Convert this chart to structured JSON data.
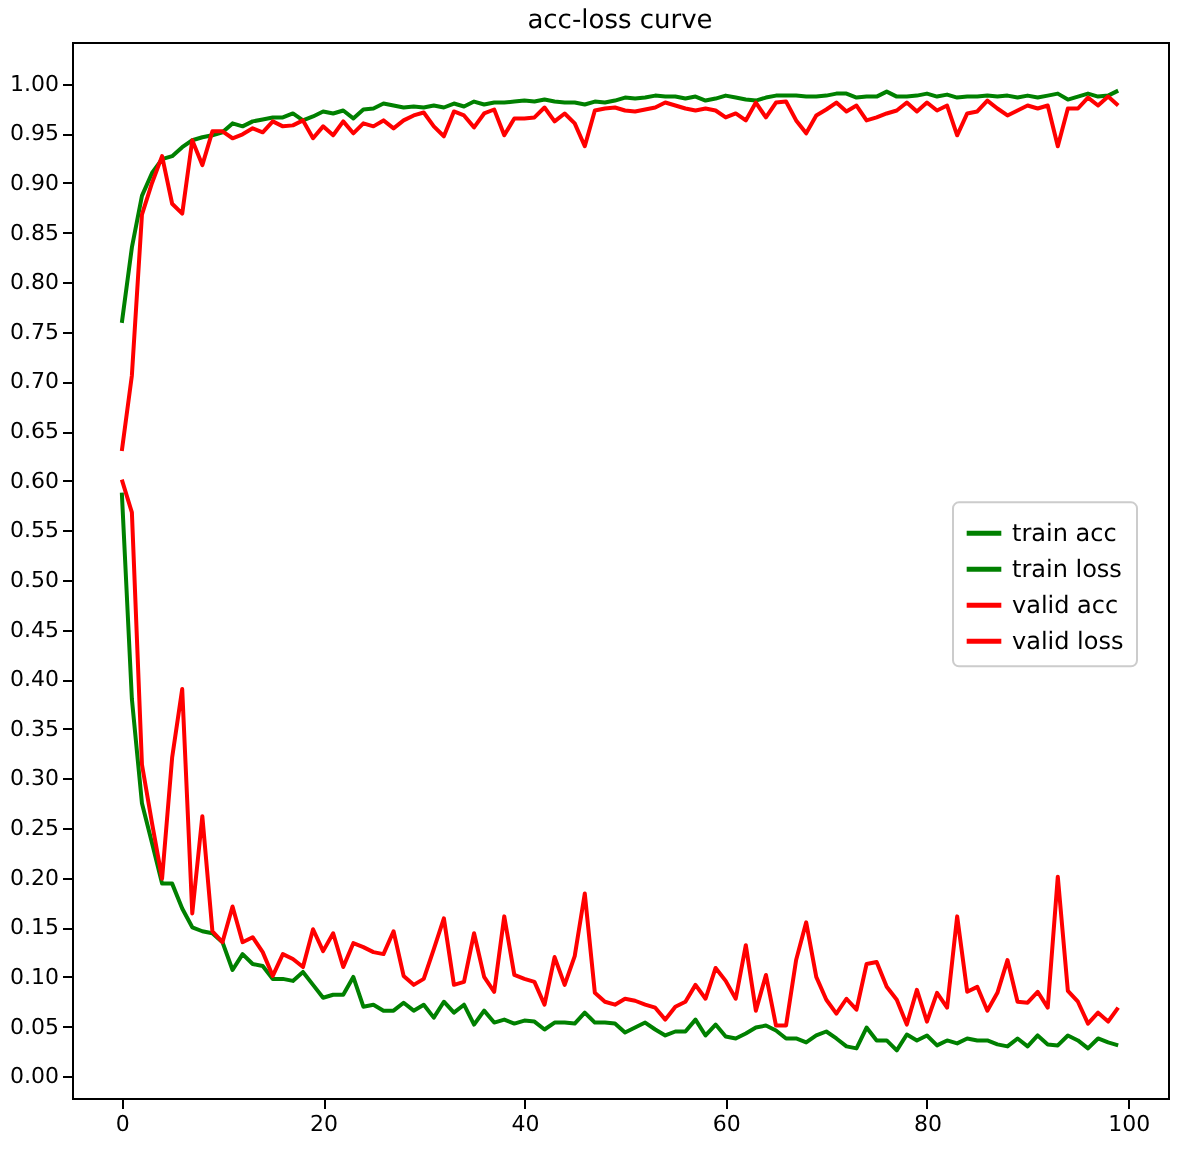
{
  "chart_data": {
    "type": "line",
    "title": "acc-loss curve",
    "x": [
      0,
      1,
      2,
      3,
      4,
      5,
      6,
      7,
      8,
      9,
      10,
      11,
      12,
      13,
      14,
      15,
      16,
      17,
      18,
      19,
      20,
      21,
      22,
      23,
      24,
      25,
      26,
      27,
      28,
      29,
      30,
      31,
      32,
      33,
      34,
      35,
      36,
      37,
      38,
      39,
      40,
      41,
      42,
      43,
      44,
      45,
      46,
      47,
      48,
      49,
      50,
      51,
      52,
      53,
      54,
      55,
      56,
      57,
      58,
      59,
      60,
      61,
      62,
      63,
      64,
      65,
      66,
      67,
      68,
      69,
      70,
      71,
      72,
      73,
      74,
      75,
      76,
      77,
      78,
      79,
      80,
      81,
      82,
      83,
      84,
      85,
      86,
      87,
      88,
      89,
      90,
      91,
      92,
      93,
      94,
      95,
      96,
      97,
      98,
      99
    ],
    "series": [
      {
        "name": "train acc",
        "color": "#008000",
        "values": [
          0.759,
          0.835,
          0.887,
          0.91,
          0.924,
          0.927,
          0.936,
          0.943,
          0.946,
          0.948,
          0.951,
          0.96,
          0.957,
          0.962,
          0.964,
          0.966,
          0.966,
          0.97,
          0.963,
          0.967,
          0.972,
          0.97,
          0.973,
          0.965,
          0.974,
          0.975,
          0.98,
          0.978,
          0.976,
          0.977,
          0.976,
          0.978,
          0.976,
          0.98,
          0.977,
          0.982,
          0.979,
          0.981,
          0.981,
          0.982,
          0.983,
          0.982,
          0.984,
          0.982,
          0.981,
          0.981,
          0.979,
          0.982,
          0.981,
          0.983,
          0.986,
          0.985,
          0.986,
          0.988,
          0.987,
          0.987,
          0.985,
          0.987,
          0.983,
          0.985,
          0.988,
          0.986,
          0.984,
          0.983,
          0.986,
          0.988,
          0.988,
          0.988,
          0.987,
          0.987,
          0.988,
          0.99,
          0.99,
          0.986,
          0.987,
          0.987,
          0.992,
          0.987,
          0.987,
          0.988,
          0.99,
          0.987,
          0.989,
          0.986,
          0.987,
          0.987,
          0.988,
          0.987,
          0.988,
          0.986,
          0.988,
          0.986,
          0.988,
          0.99,
          0.984,
          0.987,
          0.99,
          0.987,
          0.988,
          0.993
        ]
      },
      {
        "name": "train loss",
        "color": "#008000",
        "values": [
          0.588,
          0.38,
          0.275,
          0.235,
          0.194,
          0.194,
          0.169,
          0.15,
          0.146,
          0.144,
          0.135,
          0.107,
          0.123,
          0.113,
          0.111,
          0.098,
          0.098,
          0.096,
          0.105,
          0.092,
          0.079,
          0.082,
          0.082,
          0.1,
          0.07,
          0.072,
          0.066,
          0.066,
          0.074,
          0.066,
          0.072,
          0.059,
          0.075,
          0.064,
          0.072,
          0.052,
          0.066,
          0.054,
          0.057,
          0.053,
          0.056,
          0.055,
          0.047,
          0.054,
          0.054,
          0.053,
          0.064,
          0.054,
          0.054,
          0.053,
          0.044,
          0.049,
          0.054,
          0.047,
          0.041,
          0.045,
          0.045,
          0.057,
          0.041,
          0.052,
          0.04,
          0.038,
          0.043,
          0.049,
          0.051,
          0.046,
          0.038,
          0.038,
          0.034,
          0.041,
          0.045,
          0.038,
          0.03,
          0.028,
          0.049,
          0.036,
          0.036,
          0.026,
          0.042,
          0.036,
          0.041,
          0.031,
          0.036,
          0.033,
          0.038,
          0.036,
          0.036,
          0.032,
          0.03,
          0.038,
          0.03,
          0.041,
          0.032,
          0.031,
          0.041,
          0.036,
          0.028,
          0.038,
          0.034,
          0.031
        ]
      },
      {
        "name": "valid acc",
        "color": "#ff0000",
        "values": [
          0.63,
          0.706,
          0.868,
          0.9,
          0.927,
          0.879,
          0.869,
          0.943,
          0.918,
          0.952,
          0.952,
          0.945,
          0.949,
          0.955,
          0.951,
          0.962,
          0.957,
          0.958,
          0.963,
          0.945,
          0.957,
          0.948,
          0.962,
          0.95,
          0.96,
          0.957,
          0.963,
          0.955,
          0.963,
          0.968,
          0.971,
          0.957,
          0.947,
          0.972,
          0.968,
          0.956,
          0.97,
          0.974,
          0.948,
          0.965,
          0.965,
          0.966,
          0.976,
          0.962,
          0.97,
          0.96,
          0.937,
          0.973,
          0.975,
          0.976,
          0.973,
          0.972,
          0.974,
          0.976,
          0.981,
          0.978,
          0.975,
          0.973,
          0.975,
          0.973,
          0.966,
          0.97,
          0.963,
          0.981,
          0.966,
          0.981,
          0.982,
          0.963,
          0.95,
          0.968,
          0.974,
          0.981,
          0.972,
          0.978,
          0.963,
          0.966,
          0.97,
          0.973,
          0.981,
          0.972,
          0.981,
          0.973,
          0.978,
          0.948,
          0.97,
          0.972,
          0.983,
          0.975,
          0.968,
          0.973,
          0.978,
          0.975,
          0.978,
          0.937,
          0.975,
          0.975,
          0.986,
          0.978,
          0.987,
          0.978
        ]
      },
      {
        "name": "valid loss",
        "color": "#ff0000",
        "values": [
          0.601,
          0.568,
          0.314,
          0.255,
          0.199,
          0.321,
          0.39,
          0.164,
          0.262,
          0.146,
          0.135,
          0.171,
          0.135,
          0.14,
          0.125,
          0.101,
          0.123,
          0.118,
          0.11,
          0.148,
          0.126,
          0.144,
          0.11,
          0.134,
          0.13,
          0.125,
          0.123,
          0.146,
          0.101,
          0.092,
          0.098,
          0.128,
          0.159,
          0.092,
          0.095,
          0.144,
          0.1,
          0.085,
          0.161,
          0.102,
          0.098,
          0.095,
          0.072,
          0.12,
          0.092,
          0.121,
          0.184,
          0.084,
          0.075,
          0.072,
          0.078,
          0.076,
          0.072,
          0.069,
          0.057,
          0.07,
          0.075,
          0.092,
          0.078,
          0.109,
          0.096,
          0.078,
          0.132,
          0.066,
          0.102,
          0.051,
          0.051,
          0.117,
          0.155,
          0.1,
          0.077,
          0.063,
          0.078,
          0.067,
          0.113,
          0.115,
          0.09,
          0.077,
          0.052,
          0.087,
          0.055,
          0.084,
          0.069,
          0.161,
          0.085,
          0.09,
          0.066,
          0.084,
          0.117,
          0.075,
          0.074,
          0.085,
          0.069,
          0.201,
          0.086,
          0.075,
          0.053,
          0.064,
          0.055,
          0.069
        ]
      }
    ],
    "xlim": [
      -4.95,
      103.95
    ],
    "xticks": [
      0,
      20,
      40,
      60,
      80,
      100
    ],
    "ylim": [
      -0.022,
      1.042
    ],
    "yticks": [
      {
        "value": 0,
        "label": "0.00"
      },
      {
        "value": 0.05,
        "label": "0.05"
      },
      {
        "value": 0.1,
        "label": "0.10"
      },
      {
        "value": 0.15,
        "label": "0.15"
      },
      {
        "value": 0.2,
        "label": "0.20"
      },
      {
        "value": 0.25,
        "label": "0.25"
      },
      {
        "value": 0.3,
        "label": "0.30"
      },
      {
        "value": 0.35,
        "label": "0.35"
      },
      {
        "value": 0.4,
        "label": "0.40"
      },
      {
        "value": 0.45,
        "label": "0.45"
      },
      {
        "value": 0.5,
        "label": "0.50"
      },
      {
        "value": 0.55,
        "label": "0.55"
      },
      {
        "value": 0.6,
        "label": "0.60"
      },
      {
        "value": 0.65,
        "label": "0.65"
      },
      {
        "value": 0.7,
        "label": "0.70"
      },
      {
        "value": 0.75,
        "label": "0.75"
      },
      {
        "value": 0.8,
        "label": "0.80"
      },
      {
        "value": 0.85,
        "label": "0.85"
      },
      {
        "value": 0.9,
        "label": "0.90"
      },
      {
        "value": 0.95,
        "label": "0.95"
      },
      {
        "value": 1.0,
        "label": "1.00"
      }
    ],
    "grid": false,
    "legend": "right",
    "marker": "none",
    "line_style": "solid"
  }
}
